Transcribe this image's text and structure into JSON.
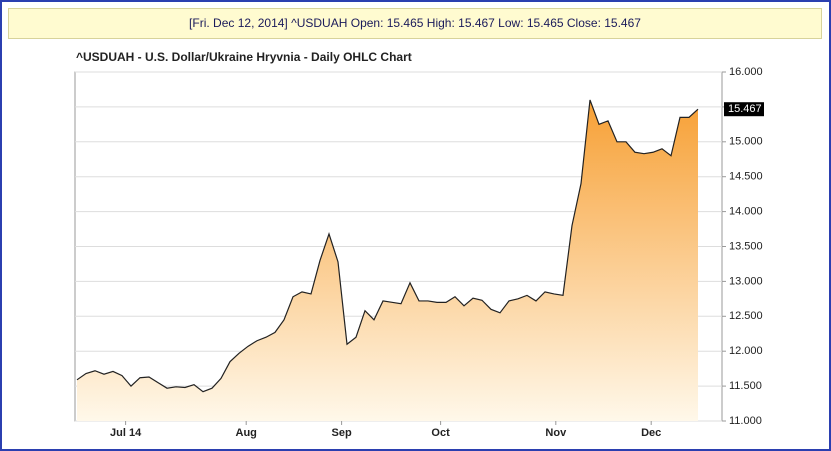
{
  "header": "[Fri. Dec 12, 2014] ^USDUAH Open: 15.465 High: 15.467 Low: 15.465 Close: 15.467",
  "chart_data": {
    "type": "area",
    "title": "^USDUAH - U.S. Dollar/Ukraine Hryvnia - Daily OHLC Chart",
    "values": [
      11.59,
      11.68,
      11.72,
      11.67,
      11.71,
      11.65,
      11.5,
      11.62,
      11.63,
      11.55,
      11.47,
      11.49,
      11.48,
      11.52,
      11.42,
      11.47,
      11.61,
      11.85,
      11.97,
      12.07,
      12.15,
      12.2,
      12.27,
      12.45,
      12.78,
      12.85,
      12.82,
      13.3,
      13.68,
      13.28,
      12.1,
      12.2,
      12.58,
      12.45,
      12.72,
      12.7,
      12.68,
      12.98,
      12.72,
      12.72,
      12.7,
      12.7,
      12.78,
      12.65,
      12.76,
      12.73,
      12.6,
      12.55,
      12.72,
      12.75,
      12.8,
      12.72,
      12.85,
      12.82,
      12.8,
      13.8,
      14.4,
      15.6,
      15.25,
      15.3,
      15.0,
      15.0,
      14.85,
      14.83,
      14.85,
      14.9,
      14.8,
      15.35,
      15.35,
      15.467
    ],
    "last_value_label": "15.467",
    "color": "#f7a035",
    "line_color": "#222222",
    "xticks": [
      {
        "value": 5.4,
        "label": "Jul 14"
      },
      {
        "value": 18.8,
        "label": "Aug"
      },
      {
        "value": 29.4,
        "label": "Sep"
      },
      {
        "value": 40.4,
        "label": "Oct"
      },
      {
        "value": 53.2,
        "label": "Nov"
      },
      {
        "value": 63.8,
        "label": "Dec"
      }
    ],
    "ylim": [
      11,
      16
    ],
    "yticks": [
      {
        "value": 11,
        "label": "11.000"
      },
      {
        "value": 11.5,
        "label": "11.500"
      },
      {
        "value": 12,
        "label": "12.000"
      },
      {
        "value": 12.5,
        "label": "12.500"
      },
      {
        "value": 13,
        "label": "13.000"
      },
      {
        "value": 13.5,
        "label": "13.500"
      },
      {
        "value": 14,
        "label": "14.000"
      },
      {
        "value": 14.5,
        "label": "14.500"
      },
      {
        "value": 15,
        "label": "15.000"
      },
      {
        "value": 15.5,
        "label": "15.500"
      },
      {
        "value": 16,
        "label": "16.000"
      }
    ],
    "grid": true
  }
}
